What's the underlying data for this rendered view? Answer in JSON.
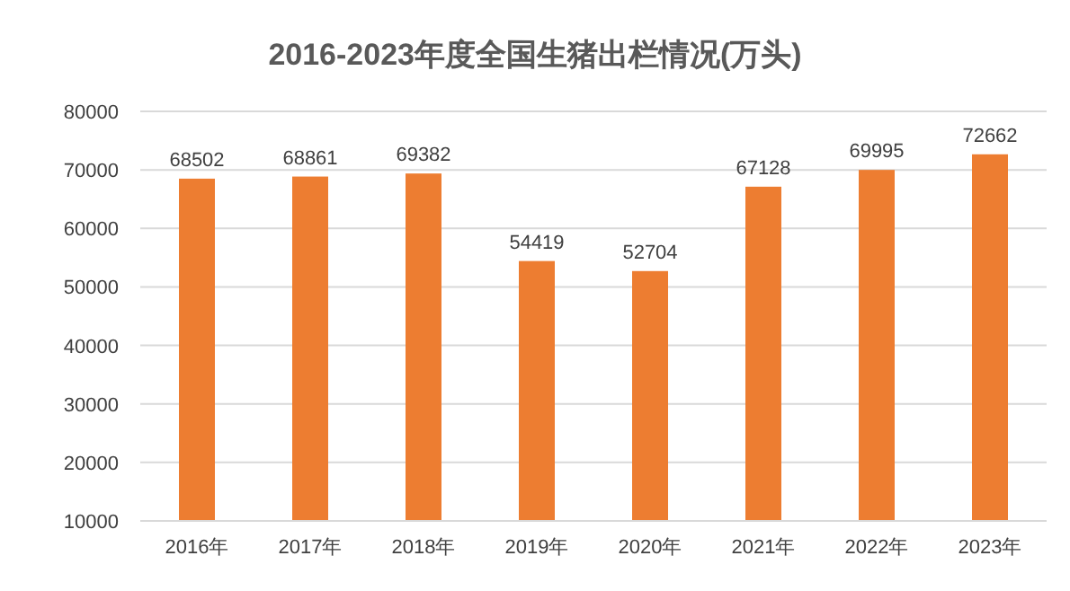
{
  "chart_data": {
    "type": "bar",
    "title": "2016-2023年度全国生猪出栏情况(万头)",
    "categories": [
      "2016年",
      "2017年",
      "2018年",
      "2019年",
      "2020年",
      "2021年",
      "2022年",
      "2023年"
    ],
    "values": [
      68502,
      68861,
      69382,
      54419,
      52704,
      67128,
      69995,
      72662
    ],
    "color": "#ed7d31",
    "ylim": [
      10000,
      80000
    ],
    "yticks": [
      10000,
      20000,
      30000,
      40000,
      50000,
      60000,
      70000,
      80000
    ],
    "grid": "y",
    "data_labels": true
  }
}
